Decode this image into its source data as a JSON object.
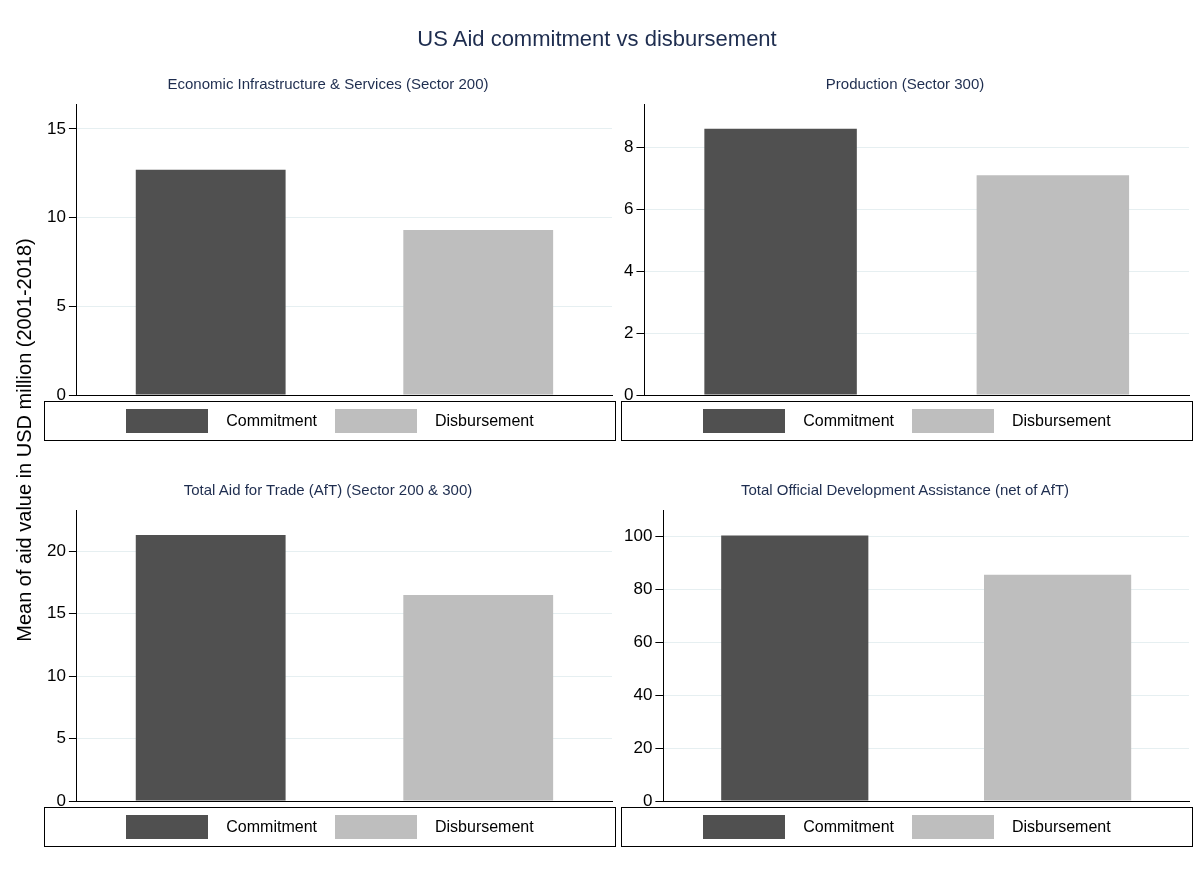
{
  "chart_data": [
    {
      "type": "bar",
      "title": "US Aid commitment vs disbursement",
      "subtitle": "Economic Infrastructure & Services (Sector 200)",
      "ylabel": "Mean of aid value in USD million (2001-2018)",
      "categories": [
        null
      ],
      "series": [
        {
          "name": "Commitment",
          "color": "#505050",
          "values": [
            12.7
          ]
        },
        {
          "name": "Disbursement",
          "color": "#bebebe",
          "values": [
            9.3
          ]
        }
      ],
      "ylim": [
        0,
        16.4
      ],
      "yticks": [
        0,
        5,
        10,
        15
      ],
      "grid": "y",
      "legend": "bottom",
      "tick_labels": "y"
    },
    {
      "type": "bar",
      "title": "Production (Sector 300)",
      "categories": [
        null
      ],
      "series": [
        {
          "name": "Commitment",
          "color": "#505050",
          "values": [
            8.6
          ]
        },
        {
          "name": "Disbursement",
          "color": "#bebebe",
          "values": [
            7.1
          ]
        }
      ],
      "ylim": [
        0,
        9.4
      ],
      "yticks": [
        0,
        2,
        4,
        6,
        8
      ],
      "grid": "y",
      "legend": "bottom",
      "tick_labels": "y"
    },
    {
      "type": "bar",
      "title": "Total Aid for Trade (AfT) (Sector 200 & 300)",
      "categories": [
        null
      ],
      "series": [
        {
          "name": "Commitment",
          "color": "#505050",
          "values": [
            21.3
          ]
        },
        {
          "name": "Disbursement",
          "color": "#bebebe",
          "values": [
            16.5
          ]
        }
      ],
      "ylim": [
        0,
        23.3
      ],
      "yticks": [
        0,
        5,
        10,
        15,
        20
      ],
      "grid": "y",
      "legend": "bottom",
      "tick_labels": "y"
    },
    {
      "type": "bar",
      "title": "Total Official Development Assistance (net of AfT)",
      "categories": [
        null
      ],
      "series": [
        {
          "name": "Commitment",
          "color": "#505050",
          "values": [
            100.4
          ]
        },
        {
          "name": "Disbursement",
          "color": "#bebebe",
          "values": [
            85.5
          ]
        }
      ],
      "ylim": [
        0,
        110
      ],
      "yticks": [
        0,
        20,
        40,
        60,
        80,
        100
      ],
      "grid": "y",
      "legend": "bottom",
      "tick_labels": "y"
    }
  ]
}
